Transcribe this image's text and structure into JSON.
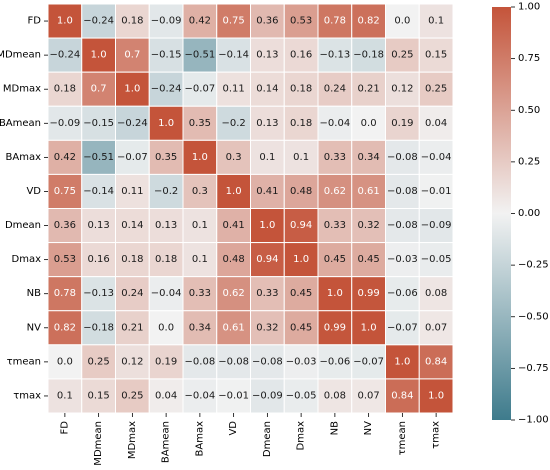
{
  "chart_data": {
    "type": "heatmap",
    "title": "",
    "labels": [
      "FD",
      "MDmean",
      "MDmax",
      "BAmean",
      "BAmax",
      "VD",
      "Dmean",
      "Dmax",
      "NB",
      "NV",
      "τmean",
      "τmax"
    ],
    "values": [
      [
        1.0,
        -0.24,
        0.18,
        -0.09,
        0.42,
        0.75,
        0.36,
        0.53,
        0.78,
        0.82,
        0.0,
        0.1
      ],
      [
        -0.24,
        1.0,
        0.7,
        -0.15,
        -0.51,
        -0.14,
        0.13,
        0.16,
        -0.13,
        -0.18,
        0.25,
        0.15
      ],
      [
        0.18,
        0.7,
        1.0,
        -0.24,
        -0.07,
        0.11,
        0.14,
        0.18,
        0.24,
        0.21,
        0.12,
        0.25
      ],
      [
        -0.09,
        -0.15,
        -0.24,
        1.0,
        0.35,
        -0.2,
        0.13,
        0.18,
        -0.04,
        0.0,
        0.19,
        0.04
      ],
      [
        0.42,
        -0.51,
        -0.07,
        0.35,
        1.0,
        0.3,
        0.1,
        0.1,
        0.33,
        0.34,
        -0.08,
        -0.04
      ],
      [
        0.75,
        -0.14,
        0.11,
        -0.2,
        0.3,
        1.0,
        0.41,
        0.48,
        0.62,
        0.61,
        -0.08,
        -0.01
      ],
      [
        0.36,
        0.13,
        0.14,
        0.13,
        0.1,
        0.41,
        1.0,
        0.94,
        0.33,
        0.32,
        -0.08,
        -0.09
      ],
      [
        0.53,
        0.16,
        0.18,
        0.18,
        0.1,
        0.48,
        0.94,
        1.0,
        0.45,
        0.45,
        -0.03,
        -0.05
      ],
      [
        0.78,
        -0.13,
        0.24,
        -0.04,
        0.33,
        0.62,
        0.33,
        0.45,
        1.0,
        0.99,
        -0.06,
        0.08
      ],
      [
        0.82,
        -0.18,
        0.21,
        0.0,
        0.34,
        0.61,
        0.32,
        0.45,
        0.99,
        1.0,
        -0.07,
        0.07
      ],
      [
        0.0,
        0.25,
        0.12,
        0.19,
        -0.08,
        -0.08,
        -0.08,
        -0.03,
        -0.06,
        -0.07,
        1.0,
        0.84
      ],
      [
        0.1,
        0.15,
        0.25,
        0.04,
        -0.04,
        -0.01,
        -0.09,
        -0.05,
        0.08,
        0.07,
        0.84,
        1.0
      ]
    ],
    "vmin": -1.0,
    "vmax": 1.0,
    "colorbar_ticks": [
      "1.00",
      "0.75",
      "0.50",
      "0.25",
      "0.00",
      "−0.25",
      "−0.50",
      "−0.75",
      "−1.00"
    ],
    "colormap": {
      "negative": "#3e7b8c",
      "center": "#f2f2f2",
      "positive": "#c4543a"
    },
    "grid_lines": true,
    "legend": "colorbar-right"
  }
}
